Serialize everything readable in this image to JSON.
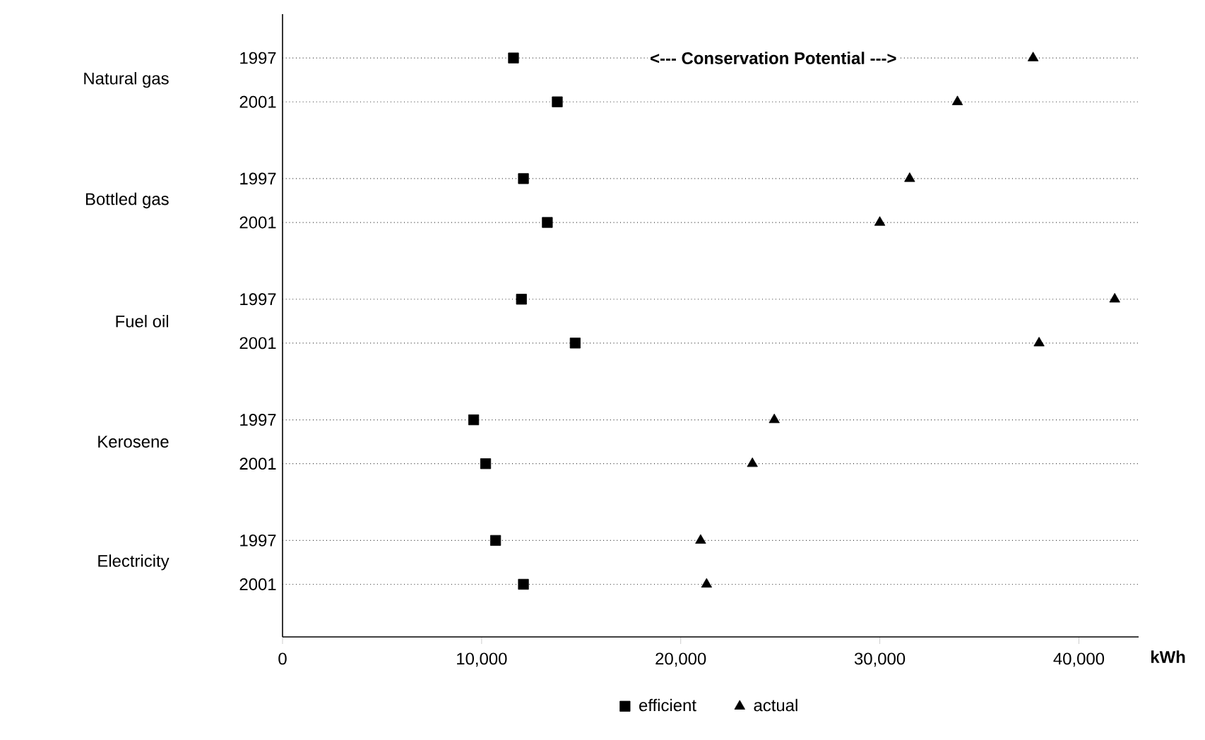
{
  "chart_data": {
    "type": "scatter",
    "orientation": "horizontal",
    "xlabel": "kWh",
    "categories": [
      "1997",
      "2001",
      "1997",
      "2001",
      "1997",
      "2001",
      "1997",
      "2001",
      "1997",
      "2001"
    ],
    "series": [
      {
        "name": "efficient",
        "color": "#000000",
        "marker": "square",
        "values": [
          11600,
          13800,
          12100,
          13300,
          12000,
          14700,
          9600,
          10200,
          10700,
          12100
        ]
      },
      {
        "name": "actual",
        "color": "#000000",
        "marker": "triangle",
        "values": [
          37700,
          33900,
          31500,
          30000,
          41800,
          38000,
          24700,
          23600,
          21000,
          21300
        ]
      }
    ],
    "annotations": [
      "<--- Conservation Potential --->",
      "Natural gas",
      "Bottled gas",
      "Fuel oil",
      "Kerosene",
      "Electricity"
    ],
    "xlim": [
      0,
      43000
    ],
    "xticks": [
      0,
      {
        "value": 10000,
        "label": "10,000"
      },
      {
        "value": 20000,
        "label": "20,000"
      },
      {
        "value": 30000,
        "label": "30,000"
      },
      {
        "value": 40000,
        "label": "40,000"
      }
    ],
    "grid": "y",
    "legend": "bottom"
  }
}
